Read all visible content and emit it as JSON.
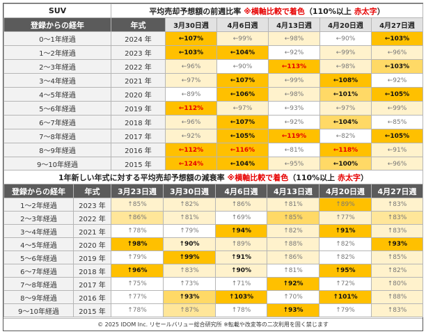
{
  "colors": {
    "header_dark": "#5b5b5b",
    "header_light": "#e2e2e2",
    "strong": "#ffc000",
    "mid": "#ffd966",
    "light": "#ffe699",
    "pale": "#fff2cc",
    "white": "#ffffff",
    "red_text": "#e60000"
  },
  "table1": {
    "category": "SUV",
    "title_prefix": "平均売却予想額の前週比率",
    "title_note_red": "※横軸比較で着色",
    "title_suffix": "（110%以上",
    "title_bold_red": "赤太字",
    "title_close": "）",
    "col_label_age": "登録からの経年",
    "col_label_year": "年式",
    "weeks": [
      "3月30日週",
      "4月6日週",
      "4月13日週",
      "4月20日週",
      "4月27日週"
    ],
    "rows": [
      {
        "age": "0～1年経過",
        "year": "2024 年",
        "cells": [
          {
            "t": "←107%",
            "c": "strong",
            "bold": true
          },
          {
            "t": "←99%",
            "c": "pale"
          },
          {
            "t": "←98%",
            "c": "pale"
          },
          {
            "t": "←90%",
            "c": "white"
          },
          {
            "t": "←103%",
            "c": "strong",
            "bold": true
          }
        ]
      },
      {
        "age": "1～2年経過",
        "year": "2023 年",
        "cells": [
          {
            "t": "←103%",
            "c": "strong",
            "bold": true
          },
          {
            "t": "←104%",
            "c": "strong",
            "bold": true
          },
          {
            "t": "←92%",
            "c": "white"
          },
          {
            "t": "←99%",
            "c": "pale"
          },
          {
            "t": "←96%",
            "c": "pale"
          }
        ]
      },
      {
        "age": "2～3年経過",
        "year": "2022 年",
        "cells": [
          {
            "t": "←96%",
            "c": "pale"
          },
          {
            "t": "←90%",
            "c": "white"
          },
          {
            "t": "←113%",
            "c": "strong",
            "red": true
          },
          {
            "t": "←98%",
            "c": "pale"
          },
          {
            "t": "←103%",
            "c": "mid",
            "bold": true
          }
        ]
      },
      {
        "age": "3～4年経過",
        "year": "2021 年",
        "cells": [
          {
            "t": "←97%",
            "c": "pale"
          },
          {
            "t": "←107%",
            "c": "strong",
            "bold": true
          },
          {
            "t": "←99%",
            "c": "pale"
          },
          {
            "t": "←108%",
            "c": "strong",
            "bold": true
          },
          {
            "t": "←92%",
            "c": "white"
          }
        ]
      },
      {
        "age": "4～5年経過",
        "year": "2020 年",
        "cells": [
          {
            "t": "←89%",
            "c": "white"
          },
          {
            "t": "←106%",
            "c": "strong",
            "bold": true
          },
          {
            "t": "←98%",
            "c": "pale"
          },
          {
            "t": "←101%",
            "c": "mid",
            "bold": true
          },
          {
            "t": "←105%",
            "c": "strong",
            "bold": true
          }
        ]
      },
      {
        "age": "5～6年経過",
        "year": "2019 年",
        "cells": [
          {
            "t": "←112%",
            "c": "strong",
            "red": true
          },
          {
            "t": "←97%",
            "c": "pale"
          },
          {
            "t": "←93%",
            "c": "white"
          },
          {
            "t": "←97%",
            "c": "pale"
          },
          {
            "t": "←99%",
            "c": "pale"
          }
        ]
      },
      {
        "age": "6～7年経過",
        "year": "2018 年",
        "cells": [
          {
            "t": "←96%",
            "c": "pale"
          },
          {
            "t": "←107%",
            "c": "strong",
            "bold": true
          },
          {
            "t": "←92%",
            "c": "white"
          },
          {
            "t": "←104%",
            "c": "mid",
            "bold": true
          },
          {
            "t": "←85%",
            "c": "white"
          }
        ]
      },
      {
        "age": "7～8年経過",
        "year": "2017 年",
        "cells": [
          {
            "t": "←92%",
            "c": "pale"
          },
          {
            "t": "←105%",
            "c": "strong",
            "bold": true
          },
          {
            "t": "←119%",
            "c": "strong",
            "red": true
          },
          {
            "t": "←82%",
            "c": "white"
          },
          {
            "t": "←105%",
            "c": "strong",
            "bold": true
          }
        ]
      },
      {
        "age": "8～9年経過",
        "year": "2016 年",
        "cells": [
          {
            "t": "←112%",
            "c": "strong",
            "red": true
          },
          {
            "t": "←116%",
            "c": "strong",
            "red": true
          },
          {
            "t": "←81%",
            "c": "white"
          },
          {
            "t": "←118%",
            "c": "strong",
            "red": true
          },
          {
            "t": "←91%",
            "c": "pale"
          }
        ]
      },
      {
        "age": "9～10年経過",
        "year": "2015 年",
        "cells": [
          {
            "t": "←124%",
            "c": "strong",
            "red": true
          },
          {
            "t": "←104%",
            "c": "strong",
            "bold": true
          },
          {
            "t": "←95%",
            "c": "pale"
          },
          {
            "t": "←100%",
            "c": "mid",
            "bold": true
          },
          {
            "t": "←96%",
            "c": "pale"
          }
        ]
      }
    ]
  },
  "table2": {
    "title_prefix": "1年新しい年式に対する平均売却予想額の減衰率",
    "title_note_red": "※横軸比較で着色",
    "title_suffix": "（110%以上",
    "title_bold_red": "赤太字",
    "title_close": "）",
    "col_label_age": "登録からの経年",
    "col_label_year": "年式",
    "weeks": [
      "3月23日週",
      "3月30日週",
      "4月6日週",
      "4月13日週",
      "4月20日週",
      "4月27日週"
    ],
    "rows": [
      {
        "age": "1～2年経過",
        "year": "2023 年",
        "cells": [
          {
            "t": "↑85%",
            "c": "pale"
          },
          {
            "t": "↑82%",
            "c": "pale"
          },
          {
            "t": "↑86%",
            "c": "pale"
          },
          {
            "t": "↑81%",
            "c": "pale"
          },
          {
            "t": "↑89%",
            "c": "strong"
          },
          {
            "t": "↑83%",
            "c": "pale"
          }
        ]
      },
      {
        "age": "2～3年経過",
        "year": "2022 年",
        "cells": [
          {
            "t": "↑86%",
            "c": "light"
          },
          {
            "t": "↑81%",
            "c": "pale"
          },
          {
            "t": "↑69%",
            "c": "white"
          },
          {
            "t": "↑85%",
            "c": "mid"
          },
          {
            "t": "↑77%",
            "c": "pale"
          },
          {
            "t": "↑83%",
            "c": "light"
          }
        ]
      },
      {
        "age": "3～4年経過",
        "year": "2021 年",
        "cells": [
          {
            "t": "↑78%",
            "c": "white"
          },
          {
            "t": "↑79%",
            "c": "white"
          },
          {
            "t": "↑94%",
            "c": "strong",
            "bold": true
          },
          {
            "t": "↑82%",
            "c": "pale"
          },
          {
            "t": "↑91%",
            "c": "strong",
            "bold": true
          },
          {
            "t": "↑83%",
            "c": "pale"
          }
        ]
      },
      {
        "age": "4～5年経過",
        "year": "2020 年",
        "cells": [
          {
            "t": "↑98%",
            "c": "strong",
            "bold": true
          },
          {
            "t": "↑90%",
            "c": "pale",
            "bold": true
          },
          {
            "t": "↑89%",
            "c": "pale"
          },
          {
            "t": "↑88%",
            "c": "pale"
          },
          {
            "t": "↑82%",
            "c": "white"
          },
          {
            "t": "↑93%",
            "c": "strong",
            "bold": true
          }
        ]
      },
      {
        "age": "5～6年経過",
        "year": "2019 年",
        "cells": [
          {
            "t": "↑79%",
            "c": "white"
          },
          {
            "t": "↑99%",
            "c": "strong",
            "bold": true
          },
          {
            "t": "↑91%",
            "c": "pale",
            "bold": true
          },
          {
            "t": "↑86%",
            "c": "pale"
          },
          {
            "t": "↑82%",
            "c": "white"
          },
          {
            "t": "↑85%",
            "c": "pale"
          }
        ]
      },
      {
        "age": "6～7年経過",
        "year": "2018 年",
        "cells": [
          {
            "t": "↑96%",
            "c": "strong",
            "bold": true
          },
          {
            "t": "↑83%",
            "c": "pale"
          },
          {
            "t": "↑90%",
            "c": "pale",
            "bold": true
          },
          {
            "t": "↑81%",
            "c": "white"
          },
          {
            "t": "↑95%",
            "c": "strong",
            "bold": true
          },
          {
            "t": "↑82%",
            "c": "pale"
          }
        ]
      },
      {
        "age": "7～8年経過",
        "year": "2017 年",
        "cells": [
          {
            "t": "↑75%",
            "c": "white"
          },
          {
            "t": "↑73%",
            "c": "white"
          },
          {
            "t": "↑71%",
            "c": "white"
          },
          {
            "t": "↑92%",
            "c": "strong",
            "bold": true
          },
          {
            "t": "↑72%",
            "c": "white"
          },
          {
            "t": "↑80%",
            "c": "pale"
          }
        ]
      },
      {
        "age": "8～9年経過",
        "year": "2016 年",
        "cells": [
          {
            "t": "↑77%",
            "c": "white"
          },
          {
            "t": "↑93%",
            "c": "mid",
            "bold": true
          },
          {
            "t": "↑103%",
            "c": "strong",
            "bold": true
          },
          {
            "t": "↑70%",
            "c": "white"
          },
          {
            "t": "↑101%",
            "c": "strong",
            "bold": true
          },
          {
            "t": "↑88%",
            "c": "pale"
          }
        ]
      },
      {
        "age": "9～10年経過",
        "year": "2015 年",
        "cells": [
          {
            "t": "↑78%",
            "c": "white"
          },
          {
            "t": "↑87%",
            "c": "light"
          },
          {
            "t": "↑78%",
            "c": "white"
          },
          {
            "t": "↑93%",
            "c": "strong",
            "bold": true
          },
          {
            "t": "↑79%",
            "c": "white"
          },
          {
            "t": "↑83%",
            "c": "pale"
          }
        ]
      }
    ]
  },
  "footer": "© 2025 IDOM Inc. リセールバリュー総合研究所 ※転載や改変等の二次利用を固く禁じます"
}
